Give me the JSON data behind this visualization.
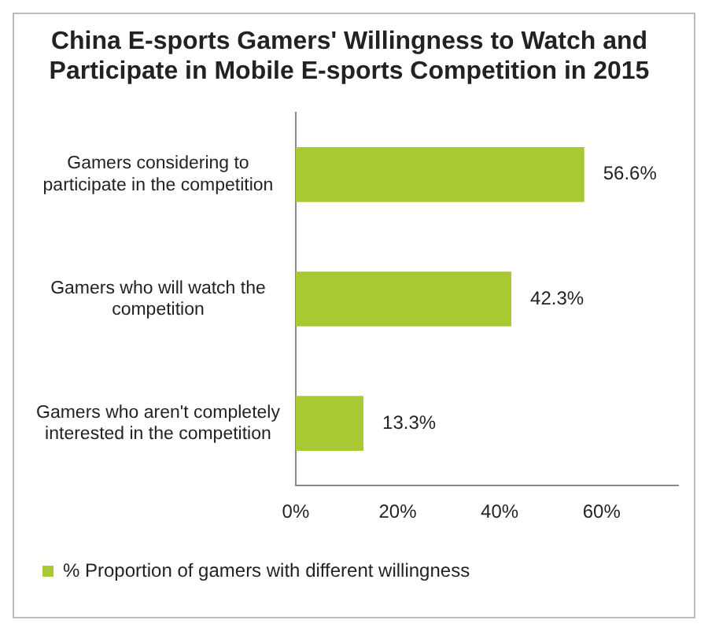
{
  "chart_data": {
    "type": "bar",
    "orientation": "horizontal",
    "title": "China E-sports Gamers' Willingness to Watch and Participate in Mobile E-sports Competition in 2015",
    "categories": [
      "Gamers considering to participate in the competition",
      "Gamers who will watch the competition",
      "Gamers who aren't completely interested in the competition"
    ],
    "series": [
      {
        "name": "% Proportion of gamers with different willingness",
        "color": "#a9c933",
        "values": [
          56.6,
          42.3,
          13.3
        ],
        "value_labels": [
          "56.6%",
          "42.3%",
          "13.3%"
        ]
      }
    ],
    "xlim": [
      0,
      75
    ],
    "xticks": [
      {
        "value": 0,
        "label": "0%"
      },
      {
        "value": 20,
        "label": "20%"
      },
      {
        "value": 40,
        "label": "40%"
      },
      {
        "value": 60,
        "label": "60%"
      }
    ],
    "grid": false,
    "legend": "bottom"
  }
}
